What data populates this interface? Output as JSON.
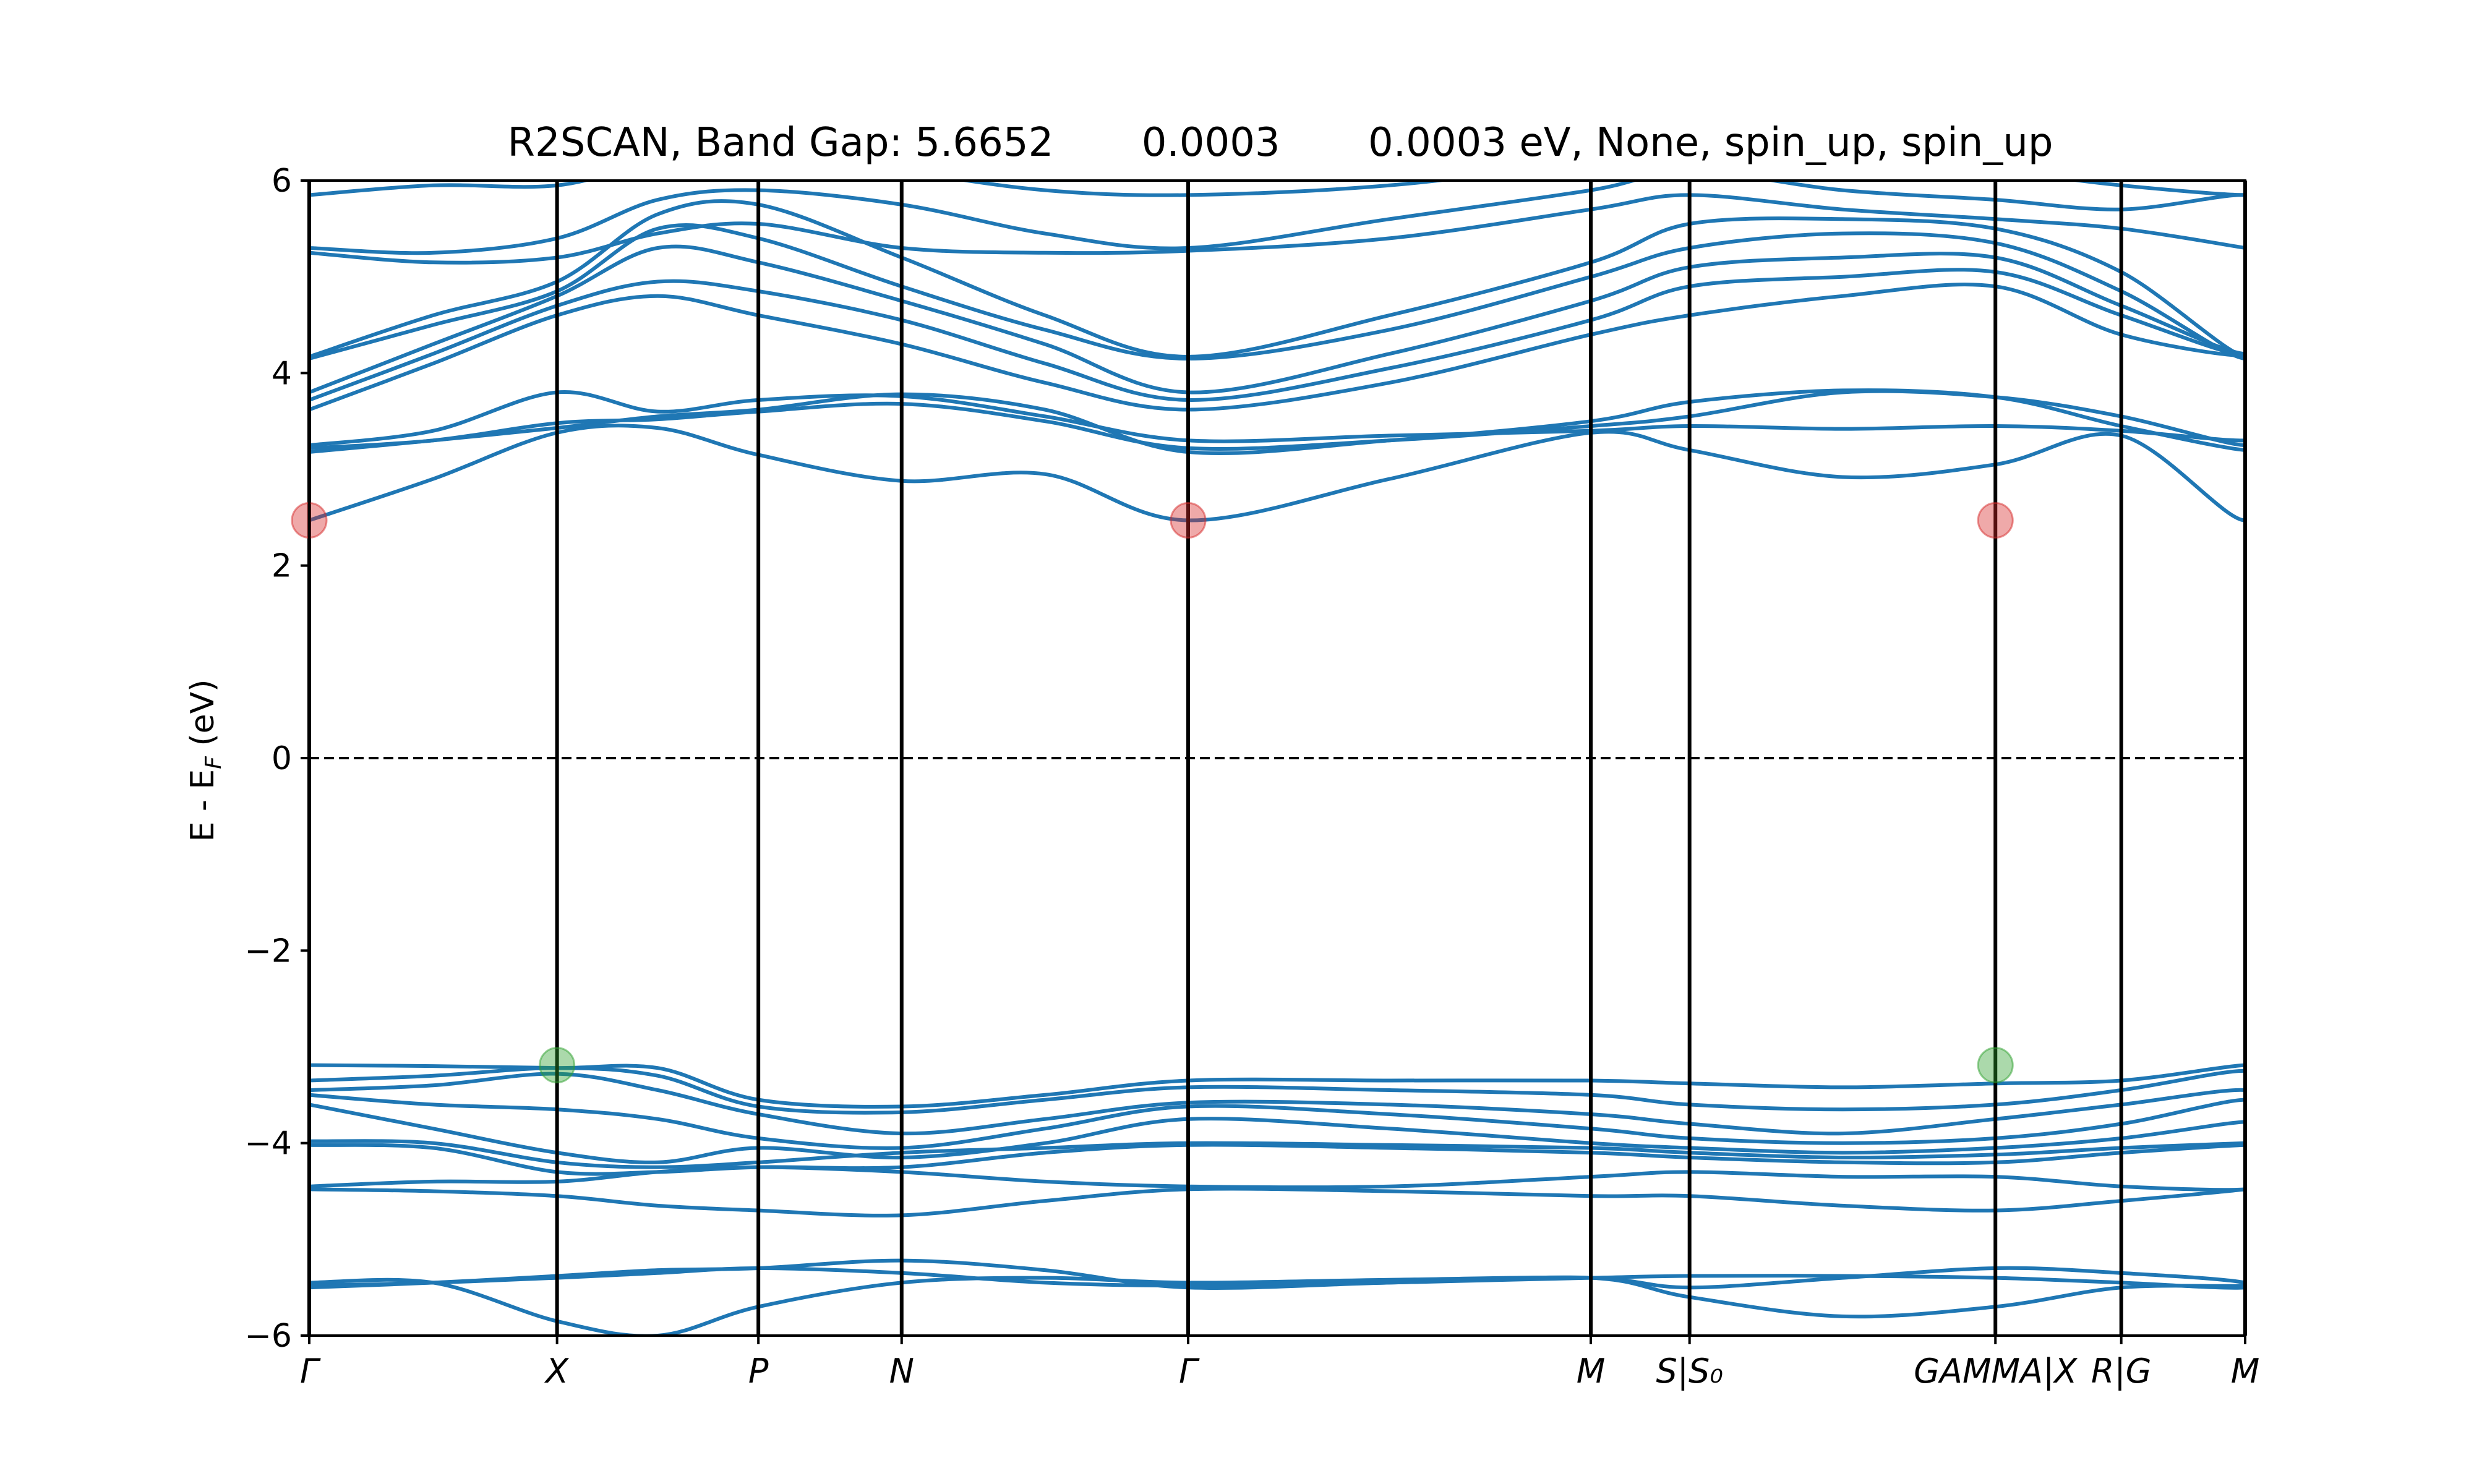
{
  "chart_data": {
    "type": "line",
    "title": "R2SCAN, Band Gap: 5.6652       0.0003       0.0003 eV, None, spin_up, spin_up",
    "xlabel": "",
    "ylabel": "E - E_F (eV)",
    "ylabel_parts": {
      "main": "E - E",
      "sub": "F",
      "tail": " (eV)"
    },
    "ylim": [
      -6,
      6
    ],
    "yticks": [
      -6,
      -4,
      -2,
      0,
      2,
      4,
      6
    ],
    "ytick_labels": [
      "−6",
      "−4",
      "−2",
      "0",
      "2",
      "4",
      "6"
    ],
    "grid": false,
    "fermi_level": 0,
    "xlim": [
      0,
      1
    ],
    "high_symmetry_points": [
      {
        "position": 0.0,
        "label": "Γ"
      },
      {
        "position": 0.128,
        "label": "X"
      },
      {
        "position": 0.232,
        "label": "P"
      },
      {
        "position": 0.306,
        "label": "N"
      },
      {
        "position": 0.454,
        "label": "Γ"
      },
      {
        "position": 0.662,
        "label": "M"
      },
      {
        "position": 0.713,
        "label": "S|S₀"
      },
      {
        "position": 0.871,
        "label": "GAMMA|X"
      },
      {
        "position": 0.936,
        "label": "R|G"
      },
      {
        "position": 1.0,
        "label": "M"
      }
    ],
    "cbm_points": [
      {
        "x": 0.0,
        "y": 2.47
      },
      {
        "x": 0.454,
        "y": 2.47
      },
      {
        "x": 0.871,
        "y": 2.47
      }
    ],
    "vbm_points": [
      {
        "x": 0.128,
        "y": -3.19
      },
      {
        "x": 0.871,
        "y": -3.19
      }
    ],
    "series": [
      {
        "values": [
          2.47,
          2.9,
          3.38,
          3.43,
          3.15,
          2.88,
          2.95,
          2.47,
          2.9,
          3.38,
          3.2,
          2.92,
          3.05,
          3.35,
          2.47,
          3.4,
          3.4,
          3.45
        ]
      },
      {
        "values": [
          3.18,
          3.3,
          3.43,
          3.55,
          3.62,
          3.78,
          3.62,
          3.18,
          3.3,
          3.5,
          3.7,
          3.82,
          3.75,
          3.45,
          3.2,
          3.35,
          3.6,
          3.82
        ]
      },
      {
        "values": [
          3.22,
          3.3,
          3.48,
          3.52,
          3.6,
          3.68,
          3.5,
          3.22,
          3.3,
          3.45,
          3.55,
          3.8,
          3.75,
          3.55,
          3.25,
          3.5,
          3.62,
          3.82
        ]
      },
      {
        "values": [
          3.25,
          3.4,
          3.8,
          3.6,
          3.72,
          3.76,
          3.55,
          3.3,
          3.35,
          3.4,
          3.45,
          3.42,
          3.45,
          3.4,
          3.3,
          3.45,
          3.5,
          2.92
        ]
      },
      {
        "values": [
          3.62,
          4.1,
          4.6,
          4.8,
          4.6,
          4.3,
          3.9,
          3.62,
          3.9,
          4.4,
          4.6,
          4.8,
          4.9,
          4.4,
          4.18,
          4.4,
          4.6,
          4.82
        ]
      },
      {
        "values": [
          3.72,
          4.2,
          4.7,
          4.95,
          4.85,
          4.55,
          4.1,
          3.72,
          4.05,
          4.55,
          4.9,
          5.0,
          5.05,
          4.6,
          4.18,
          4.5,
          4.7,
          4.95
        ]
      },
      {
        "values": [
          3.8,
          4.3,
          4.8,
          5.3,
          5.15,
          4.75,
          4.3,
          3.8,
          4.2,
          4.75,
          5.1,
          5.2,
          5.2,
          4.7,
          4.2,
          4.65,
          4.85,
          5.15
        ]
      },
      {
        "values": [
          4.15,
          4.5,
          4.85,
          5.5,
          5.4,
          4.9,
          4.45,
          4.15,
          4.45,
          5.0,
          5.3,
          5.45,
          5.35,
          4.85,
          4.15,
          4.75,
          5.0,
          5.35
        ]
      },
      {
        "values": [
          4.17,
          4.6,
          4.95,
          5.65,
          5.75,
          5.2,
          4.6,
          4.17,
          4.6,
          5.15,
          5.55,
          5.6,
          5.5,
          5.05,
          4.17,
          4.8,
          5.2,
          5.55
        ]
      },
      {
        "values": [
          5.25,
          5.15,
          5.2,
          5.45,
          5.55,
          5.3,
          5.25,
          5.27,
          5.4,
          5.7,
          5.85,
          5.7,
          5.6,
          5.5,
          5.3,
          5.3,
          5.5,
          5.7
        ]
      },
      {
        "values": [
          5.3,
          5.25,
          5.4,
          5.8,
          5.9,
          5.75,
          5.45,
          5.3,
          5.6,
          5.9,
          6.1,
          5.9,
          5.8,
          5.7,
          5.85,
          5.6,
          5.8,
          5.7
        ]
      },
      {
        "values": [
          5.85,
          5.95,
          5.95,
          6.2,
          6.3,
          6.1,
          5.9,
          5.85,
          5.95,
          6.2,
          6.3,
          6.2,
          6.1,
          5.95,
          5.85,
          5.95,
          6.2,
          6.2
        ]
      },
      {
        "values": [
          -3.19,
          -3.2,
          -3.22,
          -3.22,
          -3.55,
          -3.62,
          -3.5,
          -3.35,
          -3.35,
          -3.35,
          -3.38,
          -3.42,
          -3.38,
          -3.35,
          -3.19,
          -3.3,
          -3.38,
          -3.4
        ]
      },
      {
        "values": [
          -3.35,
          -3.3,
          -3.22,
          -3.3,
          -3.62,
          -3.68,
          -3.55,
          -3.42,
          -3.45,
          -3.5,
          -3.6,
          -3.65,
          -3.6,
          -3.45,
          -3.25,
          -3.5,
          -3.6,
          -3.7
        ]
      },
      {
        "values": [
          -3.45,
          -3.4,
          -3.28,
          -3.45,
          -3.7,
          -3.9,
          -3.75,
          -3.58,
          -3.6,
          -3.7,
          -3.8,
          -3.9,
          -3.75,
          -3.6,
          -3.45,
          -3.7,
          -3.8,
          -3.85
        ]
      },
      {
        "values": [
          -3.5,
          -3.6,
          -3.65,
          -3.75,
          -3.95,
          -4.05,
          -3.85,
          -3.62,
          -3.7,
          -3.85,
          -3.95,
          -4.0,
          -3.95,
          -3.8,
          -3.55,
          -3.8,
          -3.9,
          -4.0
        ]
      },
      {
        "values": [
          -3.6,
          -3.85,
          -4.1,
          -4.2,
          -4.05,
          -4.15,
          -4.0,
          -3.75,
          -3.85,
          -4.0,
          -4.05,
          -4.1,
          -4.05,
          -3.95,
          -3.78,
          -3.9,
          -4.0,
          -4.05
        ]
      },
      {
        "values": [
          -3.98,
          -4.0,
          -4.2,
          -4.25,
          -4.2,
          -4.1,
          -4.05,
          -4.0,
          -4.02,
          -4.05,
          -4.1,
          -4.15,
          -4.12,
          -4.05,
          -4.0,
          -4.0,
          -4.05,
          -4.1
        ]
      },
      {
        "values": [
          -4.02,
          -4.05,
          -4.3,
          -4.3,
          -4.25,
          -4.25,
          -4.1,
          -4.02,
          -4.05,
          -4.1,
          -4.15,
          -4.2,
          -4.2,
          -4.1,
          -4.02,
          -4.05,
          -4.1,
          -4.15
        ]
      },
      {
        "values": [
          -4.45,
          -4.4,
          -4.4,
          -4.3,
          -4.25,
          -4.3,
          -4.4,
          -4.45,
          -4.45,
          -4.35,
          -4.3,
          -4.35,
          -4.35,
          -4.45,
          -4.48,
          -4.35,
          -4.3,
          -4.25
        ]
      },
      {
        "values": [
          -4.48,
          -4.5,
          -4.55,
          -4.65,
          -4.7,
          -4.75,
          -4.6,
          -4.48,
          -4.5,
          -4.55,
          -4.55,
          -4.65,
          -4.7,
          -4.6,
          -4.48,
          -4.45,
          -4.5,
          -4.6
        ]
      },
      {
        "values": [
          -5.45,
          -5.45,
          -5.85,
          -6.0,
          -5.7,
          -5.45,
          -5.4,
          -5.45,
          -5.42,
          -5.4,
          -5.5,
          -5.4,
          -5.3,
          -5.35,
          -5.45,
          -5.6,
          -5.8,
          -5.75
        ]
      },
      {
        "values": [
          -5.48,
          -5.45,
          -5.4,
          -5.35,
          -5.3,
          -5.35,
          -5.45,
          -5.48,
          -5.45,
          -5.4,
          -5.6,
          -5.8,
          -5.7,
          -5.5,
          -5.48,
          -5.4,
          -5.3,
          -5.2
        ]
      },
      {
        "values": [
          -5.5,
          -5.45,
          -5.38,
          -5.32,
          -5.3,
          -5.22,
          -5.32,
          -5.5,
          -5.45,
          -5.4,
          -5.38,
          -5.38,
          -5.4,
          -5.45,
          -5.5,
          -5.35,
          -5.25,
          -5.38
        ]
      }
    ]
  },
  "colors": {
    "band": "#1f77b4",
    "cbm": "#d62728",
    "vbm": "#2ca02c",
    "axes": "#000000",
    "background": "#ffffff"
  }
}
